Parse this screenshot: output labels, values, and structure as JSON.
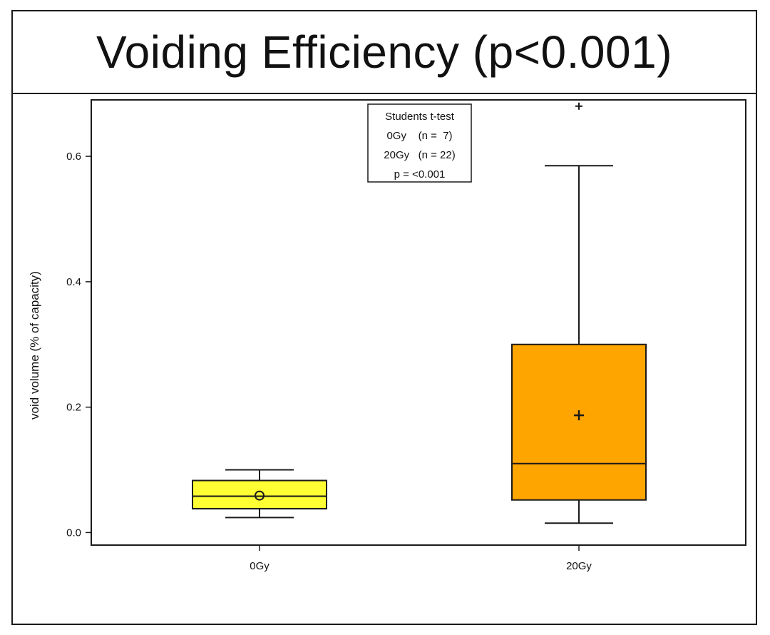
{
  "chart_data": {
    "type": "box",
    "title": "Voiding Efficiency (p<0.001)",
    "ylabel": "void volume (% of capacity)",
    "xlabel": "",
    "ylim": [
      -0.02,
      0.69
    ],
    "yticks": [
      0.0,
      0.2,
      0.4,
      0.6
    ],
    "ytick_labels": [
      "0.0",
      "0.2",
      "0.4",
      "0.6"
    ],
    "categories": [
      "0Gy",
      "20Gy"
    ],
    "groups": [
      {
        "name": "0Gy",
        "color": "#ffff33",
        "whisker_low": 0.024,
        "q1": 0.038,
        "median": 0.058,
        "q3": 0.083,
        "whisker_high": 0.1,
        "mean": 0.059,
        "mean_marker": "circle",
        "outliers": []
      },
      {
        "name": "20Gy",
        "color": "#ffa500",
        "whisker_low": 0.015,
        "q1": 0.052,
        "median": 0.11,
        "q3": 0.3,
        "whisker_high": 0.585,
        "mean": 0.187,
        "mean_marker": "plus",
        "outliers": [
          0.68
        ]
      }
    ],
    "legend_box": {
      "position": "top-center",
      "lines": [
        "Students t-test",
        "0Gy    (n =  7)",
        "20Gy   (n = 22)",
        "p = <0.001"
      ]
    },
    "grid": false
  }
}
